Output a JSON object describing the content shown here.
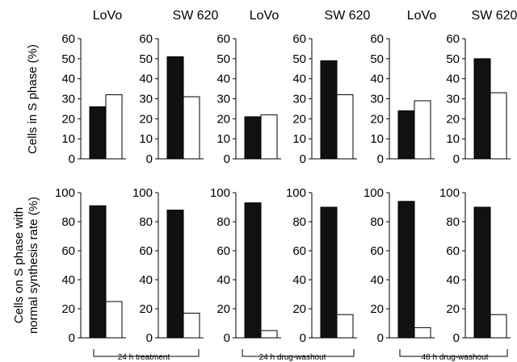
{
  "column_labels": [
    "LoVo",
    "SW 620",
    "LoVo",
    "SW 620",
    "LoVo",
    "SW 620"
  ],
  "row_ylabels": [
    [
      "Cells in S phase (%)"
    ],
    [
      "Cells on S phase with",
      "normal synthesis rate (%)"
    ]
  ],
  "group_labels": [
    "24 h treatment",
    "24 h drug-washout",
    "48 h drug-washout"
  ],
  "colors": {
    "filled_bar": "#111111",
    "open_bar": "#ffffff",
    "axis": "#000000"
  },
  "chart_data": [
    {
      "type": "bar",
      "row": 0,
      "col": 0,
      "title": "LoVo",
      "group": "24 h treatment",
      "ylabel": "Cells in S phase (%)",
      "ylim": [
        0,
        60
      ],
      "yticks": [
        0,
        10,
        20,
        30,
        40,
        50,
        60
      ],
      "values": [
        26,
        32
      ]
    },
    {
      "type": "bar",
      "row": 0,
      "col": 1,
      "title": "SW 620",
      "group": "24 h treatment",
      "ylim": [
        0,
        60
      ],
      "yticks": [
        0,
        10,
        20,
        30,
        40,
        50,
        60
      ],
      "values": [
        51,
        31
      ]
    },
    {
      "type": "bar",
      "row": 0,
      "col": 2,
      "title": "LoVo",
      "group": "24 h drug-washout",
      "ylim": [
        0,
        60
      ],
      "yticks": [
        0,
        10,
        20,
        30,
        40,
        50,
        60
      ],
      "values": [
        21,
        22
      ]
    },
    {
      "type": "bar",
      "row": 0,
      "col": 3,
      "title": "SW 620",
      "group": "24 h drug-washout",
      "ylim": [
        0,
        60
      ],
      "yticks": [
        0,
        10,
        20,
        30,
        40,
        50,
        60
      ],
      "values": [
        49,
        32
      ]
    },
    {
      "type": "bar",
      "row": 0,
      "col": 4,
      "title": "LoVo",
      "group": "48 h drug-washout",
      "ylim": [
        0,
        60
      ],
      "yticks": [
        0,
        10,
        20,
        30,
        40,
        50,
        60
      ],
      "values": [
        24,
        29
      ]
    },
    {
      "type": "bar",
      "row": 0,
      "col": 5,
      "title": "SW 620",
      "group": "48 h drug-washout",
      "ylim": [
        0,
        60
      ],
      "yticks": [
        0,
        10,
        20,
        30,
        40,
        50,
        60
      ],
      "values": [
        50,
        33
      ]
    },
    {
      "type": "bar",
      "row": 1,
      "col": 0,
      "title": "LoVo",
      "group": "24 h treatment",
      "ylabel": "Cells on S phase with normal synthesis rate (%)",
      "ylim": [
        0,
        100
      ],
      "yticks": [
        0,
        20,
        40,
        60,
        80,
        100
      ],
      "values": [
        91,
        25
      ]
    },
    {
      "type": "bar",
      "row": 1,
      "col": 1,
      "title": "SW 620",
      "group": "24 h treatment",
      "ylim": [
        0,
        100
      ],
      "yticks": [
        0,
        20,
        40,
        60,
        80,
        100
      ],
      "values": [
        88,
        17
      ]
    },
    {
      "type": "bar",
      "row": 1,
      "col": 2,
      "title": "LoVo",
      "group": "24 h drug-washout",
      "ylim": [
        0,
        100
      ],
      "yticks": [
        0,
        20,
        40,
        60,
        80,
        100
      ],
      "values": [
        93,
        5
      ]
    },
    {
      "type": "bar",
      "row": 1,
      "col": 3,
      "title": "SW 620",
      "group": "24 h drug-washout",
      "ylim": [
        0,
        100
      ],
      "yticks": [
        0,
        20,
        40,
        60,
        80,
        100
      ],
      "values": [
        90,
        16
      ]
    },
    {
      "type": "bar",
      "row": 1,
      "col": 4,
      "title": "LoVo",
      "group": "48 h drug-washout",
      "ylim": [
        0,
        100
      ],
      "yticks": [
        0,
        20,
        40,
        60,
        80,
        100
      ],
      "values": [
        94,
        7
      ]
    },
    {
      "type": "bar",
      "row": 1,
      "col": 5,
      "title": "SW 620",
      "group": "48 h drug-washout",
      "ylim": [
        0,
        100
      ],
      "yticks": [
        0,
        20,
        40,
        60,
        80,
        100
      ],
      "values": [
        90,
        16
      ]
    }
  ]
}
